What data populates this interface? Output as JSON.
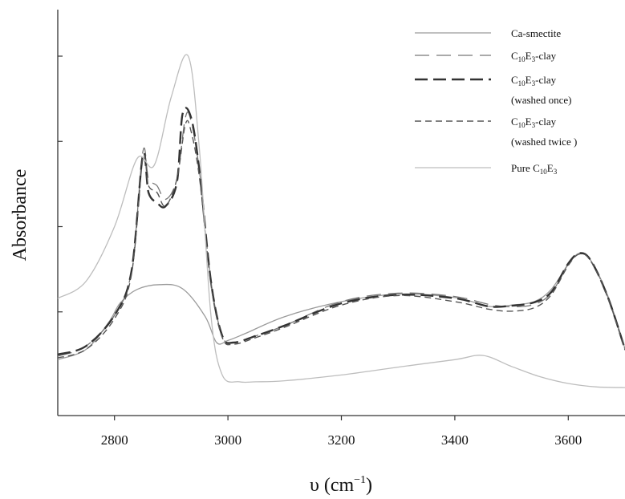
{
  "chart_data": {
    "type": "line",
    "xlabel": "υ (cm",
    "xlabel_sup": "−1",
    "xlabel_close": ")",
    "ylabel": "Absorbance",
    "xlim": [
      2700,
      3700
    ],
    "ylim": [
      0,
      1
    ],
    "x_ticks": [
      2800,
      3000,
      3200,
      3400,
      3600
    ],
    "x_tick_labels": [
      "2800",
      "3000",
      "3200",
      "3400",
      "3600"
    ],
    "y_ticks": [
      0.25,
      0.5,
      0.75,
      1.0
    ],
    "y_tick_labels_shown": false,
    "grid": false,
    "legend_position": "top-right",
    "series": [
      {
        "name": "Ca-smectite",
        "style": "solid-thin",
        "color": "#9a9a9a",
        "x": [
          2700,
          2750,
          2790,
          2810,
          2840,
          2880,
          2920,
          2960,
          2980,
          3000,
          3030,
          3100,
          3200,
          3300,
          3400,
          3460,
          3500,
          3540,
          3570,
          3600,
          3620,
          3640,
          3670,
          3700
        ],
        "y": [
          0.11,
          0.14,
          0.22,
          0.276,
          0.316,
          0.33,
          0.318,
          0.236,
          0.16,
          0.166,
          0.186,
          0.236,
          0.28,
          0.302,
          0.292,
          0.266,
          0.27,
          0.28,
          0.316,
          0.39,
          0.422,
          0.4,
          0.296,
          0.142
        ]
      },
      {
        "name": "C10E3-clay",
        "label_parts": [
          "C",
          "10",
          "E",
          "3",
          "-clay"
        ],
        "style": "long-dash-thin",
        "color": "#777777",
        "x": [
          2700,
          2750,
          2800,
          2830,
          2850,
          2860,
          2875,
          2890,
          2910,
          2925,
          2935,
          2950,
          2970,
          2990,
          3010,
          3050,
          3100,
          3200,
          3300,
          3400,
          3460,
          3500,
          3540,
          3570,
          3600,
          3620,
          3640,
          3670,
          3700
        ],
        "y": [
          0.12,
          0.15,
          0.24,
          0.37,
          0.72,
          0.64,
          0.62,
          0.58,
          0.64,
          0.82,
          0.81,
          0.66,
          0.34,
          0.18,
          0.16,
          0.18,
          0.21,
          0.28,
          0.305,
          0.295,
          0.272,
          0.265,
          0.272,
          0.305,
          0.39,
          0.42,
          0.4,
          0.292,
          0.14
        ]
      },
      {
        "name": "C10E3-clay (washed once)",
        "label_parts": [
          "C",
          "10",
          "E",
          "3",
          "-clay"
        ],
        "label_line2": "(washed once)",
        "style": "long-dash-thick",
        "color": "#333333",
        "x": [
          2700,
          2750,
          2800,
          2830,
          2850,
          2860,
          2875,
          2890,
          2910,
          2920,
          2935,
          2950,
          2970,
          2990,
          3010,
          3050,
          3100,
          3200,
          3300,
          3400,
          3460,
          3500,
          3540,
          3570,
          3600,
          3620,
          3640,
          3670,
          3700
        ],
        "y": [
          0.125,
          0.15,
          0.24,
          0.37,
          0.71,
          0.6,
          0.57,
          0.56,
          0.63,
          0.83,
          0.82,
          0.66,
          0.34,
          0.18,
          0.16,
          0.18,
          0.21,
          0.275,
          0.3,
          0.29,
          0.266,
          0.268,
          0.278,
          0.308,
          0.392,
          0.422,
          0.4,
          0.292,
          0.14
        ]
      },
      {
        "name": "C10E3-clay (washed twice )",
        "label_parts": [
          "C",
          "10",
          "E",
          "3",
          "-clay"
        ],
        "label_line2": "(washed twice )",
        "style": "short-dash",
        "color": "#555555",
        "x": [
          2700,
          2750,
          2800,
          2830,
          2850,
          2860,
          2875,
          2890,
          2910,
          2925,
          2935,
          2950,
          2970,
          2990,
          3010,
          3050,
          3100,
          3200,
          3300,
          3400,
          3460,
          3500,
          3540,
          3570,
          3600,
          3620,
          3640,
          3670,
          3700
        ],
        "y": [
          0.115,
          0.14,
          0.23,
          0.36,
          0.7,
          0.62,
          0.6,
          0.56,
          0.64,
          0.8,
          0.78,
          0.64,
          0.33,
          0.175,
          0.155,
          0.175,
          0.205,
          0.27,
          0.298,
          0.28,
          0.258,
          0.252,
          0.262,
          0.3,
          0.386,
          0.42,
          0.398,
          0.29,
          0.138
        ]
      },
      {
        "name": "Pure C10E3",
        "label_parts": [
          "Pure C",
          "10",
          "E",
          "3",
          ""
        ],
        "style": "solid-thin",
        "color": "#bdbdbd",
        "x": [
          2700,
          2750,
          2800,
          2840,
          2870,
          2900,
          2930,
          2950,
          2970,
          2990,
          3020,
          3050,
          3100,
          3200,
          3300,
          3400,
          3450,
          3500,
          3550,
          3600,
          3650,
          3700
        ],
        "y": [
          0.29,
          0.34,
          0.5,
          0.7,
          0.68,
          0.88,
          1.0,
          0.72,
          0.24,
          0.065,
          0.045,
          0.045,
          0.048,
          0.065,
          0.088,
          0.11,
          0.122,
          0.09,
          0.06,
          0.04,
          0.03,
          0.028
        ]
      }
    ],
    "baseline_series_note": ""
  }
}
